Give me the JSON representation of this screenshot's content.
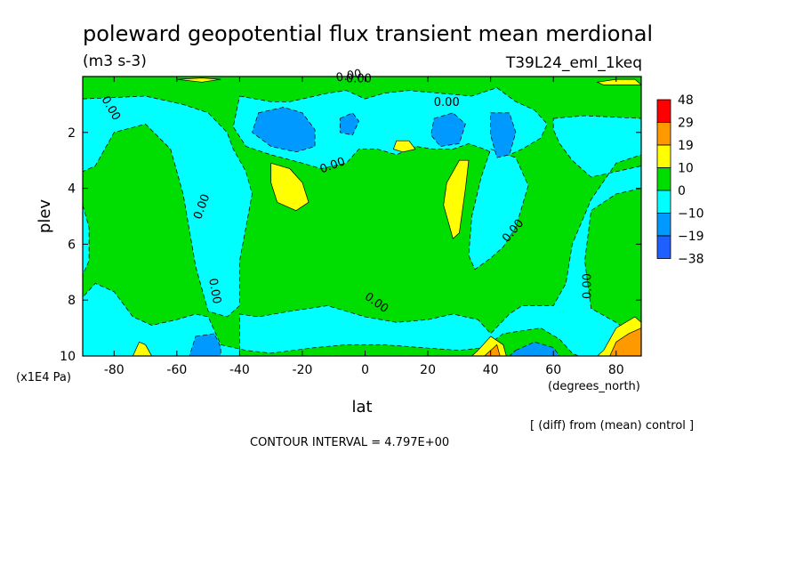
{
  "chart_data": {
    "type": "heatmap",
    "title": "poleward geopotential flux transient mean merdional",
    "units": "(m3 s-3)",
    "run_label": "T39L24_eml_1keq",
    "xlabel": "lat",
    "xunits": "(degrees_north)",
    "ylabel": "plev",
    "yunits": "(x1E4 Pa)",
    "xlim": [
      -90,
      88
    ],
    "ylim": [
      10,
      0
    ],
    "xticks": [
      -80,
      -60,
      -40,
      -20,
      0,
      20,
      40,
      60,
      80
    ],
    "xtick_labels": [
      "-80",
      "-60",
      "-40",
      "-20",
      "0",
      "20",
      "40",
      "60",
      "80"
    ],
    "yticks": [
      2,
      4,
      6,
      8,
      10
    ],
    "ytick_labels": [
      "2",
      "4",
      "6",
      "8",
      "10"
    ],
    "colorbar": {
      "labels": [
        "48",
        "29",
        "19",
        "10",
        "0",
        "−10",
        "−19",
        "−38"
      ],
      "colors": [
        "#ff0000",
        "#ff9900",
        "#ffff00",
        "#00dd00",
        "#00ffff",
        "#0099ff",
        "#1f5fff"
      ]
    },
    "contour_labels": [
      "0.00",
      "0.00",
      "0.00",
      "0.00",
      "0.00",
      "0.00",
      "0.00",
      "0.00",
      "0.00",
      "0.00"
    ],
    "footnote": "[ (diff) from (mean) control ]",
    "contour_interval_text": "CONTOUR INTERVAL = 4.797E+00",
    "background_color": "#00dd00",
    "fill_regions": [
      {
        "level": "negative",
        "color": "#00ffff",
        "points": [
          [
            -90,
            0.8
          ],
          [
            -70,
            0.7
          ],
          [
            -58,
            1.0
          ],
          [
            -50,
            1.3
          ],
          [
            -44,
            2.0
          ],
          [
            -42,
            2.6
          ],
          [
            -38,
            3.4
          ],
          [
            -36,
            4.2
          ],
          [
            -38,
            5.4
          ],
          [
            -40,
            6.6
          ],
          [
            -40,
            8.2
          ],
          [
            -44,
            8.6
          ],
          [
            -50,
            8.4
          ],
          [
            -54,
            6.8
          ],
          [
            -58,
            4.2
          ],
          [
            -62,
            2.6
          ],
          [
            -70,
            1.7
          ],
          [
            -80,
            2.0
          ],
          [
            -86,
            3.2
          ],
          [
            -90,
            3.4
          ]
        ]
      },
      {
        "level": "negative",
        "color": "#00ffff",
        "points": [
          [
            -40,
            0.7
          ],
          [
            -30,
            0.9
          ],
          [
            -24,
            0.9
          ],
          [
            -12,
            0.6
          ],
          [
            -6,
            0.5
          ],
          [
            0,
            0.8
          ],
          [
            6,
            0.6
          ],
          [
            14,
            0.5
          ],
          [
            24,
            0.6
          ],
          [
            34,
            0.7
          ],
          [
            42,
            0.4
          ],
          [
            48,
            0.9
          ],
          [
            54,
            1.2
          ],
          [
            58,
            1.7
          ],
          [
            56,
            2.2
          ],
          [
            50,
            2.6
          ],
          [
            44,
            2.9
          ],
          [
            38,
            2.6
          ],
          [
            33,
            2.4
          ],
          [
            28,
            2.6
          ],
          [
            22,
            2.6
          ],
          [
            16,
            2.5
          ],
          [
            10,
            2.8
          ],
          [
            4,
            2.6
          ],
          [
            -2,
            2.6
          ],
          [
            -6,
            3.1
          ],
          [
            -14,
            3.3
          ],
          [
            -20,
            3.1
          ],
          [
            -30,
            2.8
          ],
          [
            -38,
            2.5
          ],
          [
            -42,
            1.8
          ]
        ]
      },
      {
        "level": "negative",
        "color": "#00ffff",
        "points": [
          [
            40,
            2.6
          ],
          [
            48,
            2.9
          ],
          [
            52,
            3.9
          ],
          [
            48,
            5.4
          ],
          [
            44,
            6.1
          ],
          [
            40,
            6.5
          ],
          [
            35,
            6.9
          ],
          [
            33,
            6.4
          ],
          [
            34,
            5.0
          ],
          [
            37,
            3.6
          ]
        ]
      },
      {
        "level": "negative",
        "color": "#00ffff",
        "points": [
          [
            60,
            1.5
          ],
          [
            70,
            1.4
          ],
          [
            88,
            1.5
          ],
          [
            88,
            2.8
          ],
          [
            80,
            3.1
          ],
          [
            72,
            4.4
          ],
          [
            66,
            6.0
          ],
          [
            64,
            7.4
          ],
          [
            60,
            8.2
          ],
          [
            50,
            8.2
          ],
          [
            46,
            8.5
          ],
          [
            40,
            9.2
          ],
          [
            36,
            8.7
          ],
          [
            28,
            8.5
          ],
          [
            20,
            8.7
          ],
          [
            10,
            8.8
          ],
          [
            0,
            8.6
          ],
          [
            -12,
            8.2
          ],
          [
            -24,
            8.4
          ],
          [
            -34,
            8.6
          ],
          [
            -40,
            8.5
          ],
          [
            -40,
            10
          ],
          [
            -90,
            10
          ],
          [
            -90,
            7.9
          ],
          [
            -86,
            7.4
          ],
          [
            -80,
            7.7
          ],
          [
            -74,
            8.6
          ],
          [
            -68,
            8.9
          ],
          [
            -60,
            8.7
          ],
          [
            -54,
            8.5
          ],
          [
            -50,
            8.6
          ],
          [
            -46,
            9.6
          ],
          [
            -38,
            9.8
          ],
          [
            -30,
            9.9
          ],
          [
            -16,
            9.7
          ],
          [
            -6,
            9.6
          ],
          [
            6,
            9.6
          ],
          [
            18,
            9.7
          ],
          [
            30,
            9.8
          ],
          [
            38,
            9.7
          ],
          [
            44,
            9.2
          ],
          [
            56,
            9.0
          ],
          [
            62,
            9.4
          ],
          [
            66,
            9.9
          ],
          [
            68,
            10
          ],
          [
            88,
            10
          ],
          [
            88,
            9.4
          ],
          [
            80,
            8.8
          ],
          [
            72,
            8.3
          ],
          [
            70,
            6.6
          ],
          [
            72,
            4.8
          ],
          [
            80,
            4.2
          ],
          [
            88,
            4.0
          ],
          [
            88,
            3.2
          ],
          [
            80,
            3.4
          ],
          [
            72,
            3.6
          ],
          [
            66,
            3.0
          ],
          [
            62,
            2.4
          ],
          [
            60,
            1.9
          ]
        ]
      },
      {
        "level": "negative",
        "color": "#00ffff",
        "points": [
          [
            -90,
            4.6
          ],
          [
            -88,
            5.4
          ],
          [
            -88,
            6.6
          ],
          [
            -90,
            7.1
          ]
        ]
      },
      {
        "level": "negative",
        "color": "#0099ff",
        "points": [
          [
            -34,
            1.3
          ],
          [
            -26,
            1.1
          ],
          [
            -20,
            1.3
          ],
          [
            -16,
            1.9
          ],
          [
            -16,
            2.5
          ],
          [
            -22,
            2.7
          ],
          [
            -30,
            2.5
          ],
          [
            -36,
            2.0
          ]
        ]
      },
      {
        "level": "negative",
        "color": "#0099ff",
        "points": [
          [
            -8,
            1.5
          ],
          [
            -4,
            1.3
          ],
          [
            -2,
            1.6
          ],
          [
            -4,
            2.1
          ],
          [
            -8,
            2.0
          ]
        ]
      },
      {
        "level": "negative",
        "color": "#0099ff",
        "points": [
          [
            22,
            1.5
          ],
          [
            28,
            1.3
          ],
          [
            32,
            1.7
          ],
          [
            30,
            2.4
          ],
          [
            24,
            2.5
          ],
          [
            21,
            2.1
          ]
        ]
      },
      {
        "level": "negative",
        "color": "#0099ff",
        "points": [
          [
            40,
            1.3
          ],
          [
            46,
            1.3
          ],
          [
            48,
            2.0
          ],
          [
            46,
            2.8
          ],
          [
            42,
            2.9
          ],
          [
            40,
            2.1
          ]
        ]
      },
      {
        "level": "negative",
        "color": "#0099ff",
        "points": [
          [
            -54,
            9.3
          ],
          [
            -48,
            9.2
          ],
          [
            -46,
            9.7
          ],
          [
            -46,
            10
          ],
          [
            -56,
            10
          ]
        ]
      },
      {
        "level": "negative",
        "color": "#0099ff",
        "points": [
          [
            48,
            9.8
          ],
          [
            54,
            9.5
          ],
          [
            60,
            9.7
          ],
          [
            62,
            10
          ],
          [
            46,
            10
          ]
        ]
      },
      {
        "level": "positive",
        "color": "#ffff00",
        "points": [
          [
            -30,
            3.1
          ],
          [
            -24,
            3.3
          ],
          [
            -20,
            3.8
          ],
          [
            -18,
            4.5
          ],
          [
            -22,
            4.8
          ],
          [
            -28,
            4.5
          ],
          [
            -30,
            3.8
          ]
        ]
      },
      {
        "level": "positive",
        "color": "#ffff00",
        "points": [
          [
            10,
            2.3
          ],
          [
            14,
            2.3
          ],
          [
            16,
            2.6
          ],
          [
            12,
            2.7
          ],
          [
            9,
            2.6
          ]
        ]
      },
      {
        "level": "positive",
        "color": "#ffff00",
        "points": [
          [
            30,
            3.0
          ],
          [
            33,
            3.0
          ],
          [
            32,
            4.0
          ],
          [
            30,
            5.6
          ],
          [
            28,
            5.8
          ],
          [
            25,
            4.6
          ],
          [
            26,
            3.8
          ]
        ]
      },
      {
        "level": "positive",
        "color": "#ffff00",
        "points": [
          [
            -72,
            9.5
          ],
          [
            -70,
            9.6
          ],
          [
            -68,
            10
          ],
          [
            -74,
            10
          ]
        ]
      },
      {
        "level": "positive",
        "color": "#ffff00",
        "points": [
          [
            36,
            9.8
          ],
          [
            40,
            9.3
          ],
          [
            44,
            9.6
          ],
          [
            45,
            10
          ],
          [
            34,
            10
          ]
        ]
      },
      {
        "level": "positive",
        "color": "#ffff00",
        "points": [
          [
            76,
            9.8
          ],
          [
            80,
            9.0
          ],
          [
            86,
            8.6
          ],
          [
            88,
            8.8
          ],
          [
            88,
            10
          ],
          [
            74,
            10
          ]
        ]
      },
      {
        "level": "positive",
        "color": "#ffff00",
        "points": [
          [
            74,
            0.2
          ],
          [
            80,
            0.1
          ],
          [
            86,
            0.1
          ],
          [
            88,
            0.3
          ],
          [
            82,
            0.3
          ],
          [
            76,
            0.3
          ]
        ]
      },
      {
        "level": "positive",
        "color": "#ffff00",
        "points": [
          [
            -60,
            0.1
          ],
          [
            -52,
            0.05
          ],
          [
            -46,
            0.1
          ],
          [
            -52,
            0.2
          ]
        ]
      },
      {
        "level": "positive",
        "color": "#ff9900",
        "points": [
          [
            80,
            9.5
          ],
          [
            84,
            9.2
          ],
          [
            88,
            9.0
          ],
          [
            88,
            10
          ],
          [
            82,
            10
          ],
          [
            78,
            10
          ]
        ]
      },
      {
        "level": "positive",
        "color": "#ff9900",
        "points": [
          [
            40,
            9.8
          ],
          [
            42,
            9.6
          ],
          [
            43,
            10
          ],
          [
            38,
            10
          ]
        ]
      }
    ],
    "contour_label_positions": [
      {
        "x": -5,
        "y": 0.1,
        "rot": -10
      },
      {
        "x": 26,
        "y": 1.05,
        "rot": 0
      },
      {
        "x": -82,
        "y": 1.2,
        "rot": 60
      },
      {
        "x": -10,
        "y": 3.3,
        "rot": -20
      },
      {
        "x": -51,
        "y": 4.7,
        "rot": -70
      },
      {
        "x": 48,
        "y": 5.6,
        "rot": -50
      },
      {
        "x": 72,
        "y": 7.5,
        "rot": -90
      },
      {
        "x": -49,
        "y": 7.7,
        "rot": 80
      },
      {
        "x": 3,
        "y": 8.2,
        "rot": 35
      },
      {
        "x": -2,
        "y": 0.2,
        "rot": 0
      }
    ]
  }
}
